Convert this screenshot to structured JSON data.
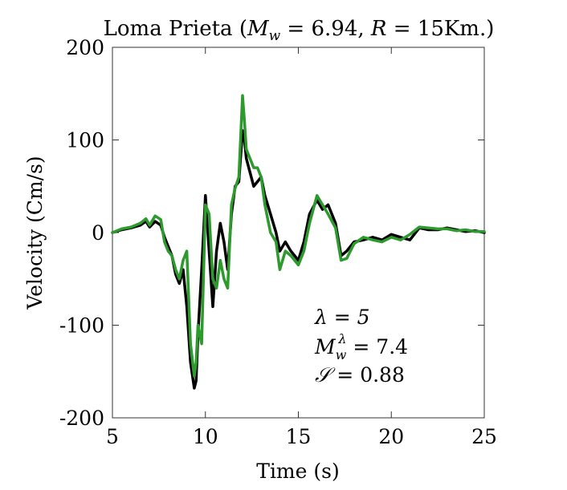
{
  "chart_data": {
    "type": "line",
    "title": "Loma Prieta (M_w = 6.94, R = 15Km.)",
    "title_parts": {
      "prefix": "Loma Prieta (",
      "m": "M",
      "m_sub": "w",
      "mid": " = 6.94, ",
      "r": "R",
      "suffix": " = 15Km.)"
    },
    "xlabel": "Time (s)",
    "ylabel": "Velocity (Cm/s)",
    "xlim": [
      5,
      25
    ],
    "ylim": [
      -200,
      200
    ],
    "xticks": [
      5,
      10,
      15,
      20,
      25
    ],
    "yticks": [
      200,
      100,
      0,
      -100,
      -200
    ],
    "xtick_labels": [
      "5",
      "10",
      "15",
      "20",
      "25"
    ],
    "ytick_labels": [
      "200",
      "100",
      "0",
      "-100",
      "-200"
    ],
    "grid": false,
    "annotations": {
      "lambda": "λ = 5",
      "mw_base": "M",
      "mw_sub": "w",
      "mw_sup": "λ",
      "mw_value": " = 7.4",
      "s_symbol": "𝒮",
      "s_value": " = 0.88"
    },
    "series": [
      {
        "color": "#000000",
        "x": [
          5.0,
          5.5,
          6.0,
          6.5,
          6.8,
          7.0,
          7.3,
          7.6,
          7.8,
          8.0,
          8.2,
          8.4,
          8.6,
          8.8,
          9.0,
          9.2,
          9.4,
          9.5,
          9.6,
          9.8,
          10.0,
          10.2,
          10.4,
          10.6,
          10.8,
          11.0,
          11.2,
          11.4,
          11.6,
          11.8,
          12.0,
          12.1,
          12.2,
          12.4,
          12.6,
          12.8,
          13.0,
          13.2,
          13.5,
          13.8,
          14.0,
          14.3,
          14.6,
          15.0,
          15.3,
          15.6,
          16.0,
          16.3,
          16.6,
          17.0,
          17.3,
          17.6,
          18.0,
          18.5,
          19.0,
          19.5,
          20.0,
          20.5,
          21.0,
          21.5,
          22.0,
          22.5,
          23.0,
          23.5,
          24.0,
          24.5,
          25.0
        ],
        "y": [
          0,
          3,
          5,
          8,
          12,
          6,
          12,
          8,
          -5,
          -15,
          -25,
          -45,
          -55,
          -40,
          -80,
          -140,
          -168,
          -160,
          -110,
          -40,
          40,
          -20,
          -80,
          -20,
          10,
          -10,
          -40,
          20,
          50,
          55,
          110,
          100,
          80,
          65,
          50,
          55,
          60,
          40,
          20,
          0,
          -20,
          -10,
          -20,
          -30,
          -10,
          20,
          35,
          25,
          30,
          10,
          -25,
          -20,
          -10,
          -8,
          -5,
          -8,
          -2,
          -5,
          -8,
          5,
          3,
          3,
          5,
          3,
          1,
          2,
          0
        ]
      },
      {
        "color": "#2c9a2c",
        "x": [
          5.0,
          5.5,
          6.0,
          6.5,
          6.8,
          7.0,
          7.3,
          7.6,
          7.8,
          8.0,
          8.2,
          8.4,
          8.6,
          8.8,
          9.0,
          9.2,
          9.4,
          9.5,
          9.6,
          9.8,
          10.0,
          10.2,
          10.4,
          10.6,
          10.8,
          11.0,
          11.2,
          11.4,
          11.6,
          11.8,
          12.0,
          12.1,
          12.2,
          12.4,
          12.6,
          12.8,
          13.0,
          13.2,
          13.5,
          13.8,
          14.0,
          14.3,
          14.6,
          15.0,
          15.3,
          15.6,
          16.0,
          16.3,
          16.6,
          17.0,
          17.3,
          17.6,
          18.0,
          18.5,
          19.0,
          19.5,
          20.0,
          20.5,
          21.0,
          21.5,
          22.0,
          22.5,
          23.0,
          23.5,
          24.0,
          24.5,
          25.0
        ],
        "y": [
          0,
          4,
          6,
          10,
          15,
          8,
          18,
          14,
          -10,
          -20,
          -25,
          -40,
          -50,
          -30,
          -20,
          -120,
          -155,
          -140,
          -100,
          -120,
          30,
          20,
          -50,
          -60,
          -30,
          -50,
          -60,
          30,
          48,
          60,
          148,
          120,
          90,
          80,
          70,
          70,
          60,
          30,
          0,
          -10,
          -40,
          -20,
          -25,
          -35,
          -20,
          10,
          40,
          30,
          20,
          5,
          -30,
          -28,
          -12,
          -5,
          -8,
          -10,
          -5,
          -8,
          -2,
          6,
          5,
          4,
          4,
          2,
          3,
          1,
          1
        ]
      }
    ]
  }
}
